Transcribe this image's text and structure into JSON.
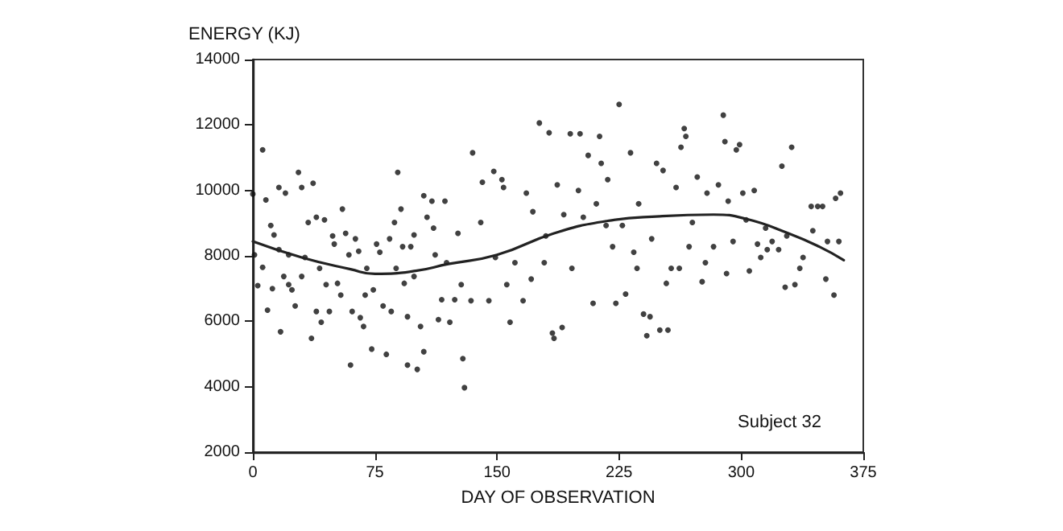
{
  "chart_data": {
    "type": "scatter",
    "xlabel": "DAY OF OBSERVATION",
    "ylabel": "ENERGY (KJ)",
    "annotations": [
      "Subject 32"
    ],
    "xlim": [
      0,
      375
    ],
    "xticks": [
      0,
      75,
      150,
      225,
      300,
      375
    ],
    "ylim": [
      2000,
      14000
    ],
    "yticks": [
      2000,
      4000,
      6000,
      8000,
      10000,
      12000,
      14000
    ],
    "grid": false,
    "marker": "circle",
    "series": [
      {
        "color": "#111111",
        "x": [
          0,
          6,
          8,
          1,
          3,
          6,
          9,
          11,
          13,
          12,
          16,
          17,
          16,
          20,
          19,
          22,
          22,
          24,
          26,
          28,
          30,
          30,
          32,
          34,
          36,
          37,
          39,
          39,
          41,
          42,
          44,
          45,
          47,
          49,
          50,
          52,
          54,
          55,
          57,
          59,
          60,
          61,
          63,
          65,
          66,
          68,
          69,
          70,
          73,
          74,
          76,
          78,
          80,
          82,
          84,
          85,
          87,
          88,
          89,
          91,
          92,
          93,
          95,
          95,
          97,
          99,
          99,
          101,
          103,
          105,
          105,
          107,
          110,
          111,
          112,
          114,
          116,
          118,
          119,
          121,
          124,
          126,
          128,
          129,
          130,
          134,
          135,
          140,
          141,
          145,
          148,
          149,
          153,
          154,
          156,
          158,
          161,
          166,
          168,
          171,
          172,
          176,
          179,
          180,
          182,
          184,
          185,
          187,
          190,
          191,
          195,
          196,
          200,
          201,
          203,
          206,
          209,
          211,
          213,
          214,
          217,
          218,
          221,
          223,
          225,
          227,
          229,
          232,
          234,
          236,
          237,
          240,
          242,
          244,
          245,
          248,
          250,
          252,
          254,
          255,
          257,
          260,
          262,
          263,
          265,
          266,
          268,
          270,
          273,
          276,
          278,
          279,
          283,
          286,
          289,
          290,
          291,
          292,
          295,
          297,
          299,
          301,
          303,
          305,
          308,
          310,
          312,
          315,
          316,
          319,
          323,
          325,
          327,
          328,
          331,
          333,
          336,
          338,
          343,
          344,
          347,
          350,
          352,
          353,
          357,
          358,
          361,
          360
        ],
        "values": [
          9890,
          11240,
          9710,
          8030,
          7090,
          7650,
          6340,
          8930,
          8640,
          7000,
          8190,
          5680,
          10090,
          9920,
          7370,
          7120,
          8030,
          6960,
          6470,
          10550,
          10090,
          7370,
          7950,
          9020,
          5480,
          10220,
          9180,
          6300,
          7620,
          5970,
          9100,
          7120,
          6300,
          8610,
          8360,
          7160,
          6800,
          9430,
          8690,
          8030,
          4660,
          6300,
          8520,
          8140,
          6110,
          5840,
          6800,
          7620,
          5150,
          6960,
          8360,
          8110,
          6470,
          4990,
          8520,
          6300,
          9020,
          7620,
          10550,
          9430,
          8280,
          7160,
          6140,
          4660,
          8280,
          8640,
          7370,
          4530,
          5840,
          9840,
          5070,
          9180,
          9670,
          8850,
          8030,
          6050,
          6660,
          9670,
          7790,
          5970,
          6660,
          8690,
          7120,
          4860,
          3970,
          6630,
          11150,
          9020,
          10250,
          6630,
          10580,
          7950,
          10330,
          10090,
          7120,
          5970,
          7790,
          6630,
          9920,
          7290,
          9350,
          12060,
          7790,
          8610,
          11760,
          5640,
          5480,
          10170,
          5810,
          9260,
          11730,
          7620,
          10000,
          11730,
          9180,
          11070,
          6550,
          9590,
          11650,
          10830,
          8930,
          10330,
          8280,
          6550,
          12630,
          8930,
          6830,
          11150,
          8110,
          7620,
          9590,
          6220,
          5560,
          6140,
          8520,
          10830,
          5730,
          10610,
          7160,
          5730,
          7620,
          10090,
          7620,
          11320,
          11890,
          11650,
          8280,
          9020,
          10410,
          7210,
          7790,
          9920,
          8280,
          10170,
          12300,
          11490,
          7460,
          9670,
          8440,
          11240,
          11400,
          9920,
          9100,
          7540,
          10000,
          8360,
          7950,
          8850,
          8190,
          8440,
          8190,
          10740,
          7040,
          8610,
          11320,
          7120,
          7620,
          7950,
          9510,
          8770,
          9510,
          9510,
          7290,
          8440,
          6800,
          9760,
          9920,
          8440
        ]
      },
      {
        "type": "line",
        "color": "#222222",
        "marker": "none",
        "line_style": "solid",
        "x": [
          0,
          30,
          60,
          75,
          100,
          120,
          150,
          185,
          218,
          250,
          283,
          303,
          329,
          348,
          363
        ],
        "values": [
          8440,
          7950,
          7590,
          7450,
          7540,
          7750,
          8030,
          8690,
          9070,
          9210,
          9260,
          9130,
          8690,
          8280,
          7870
        ]
      }
    ]
  }
}
